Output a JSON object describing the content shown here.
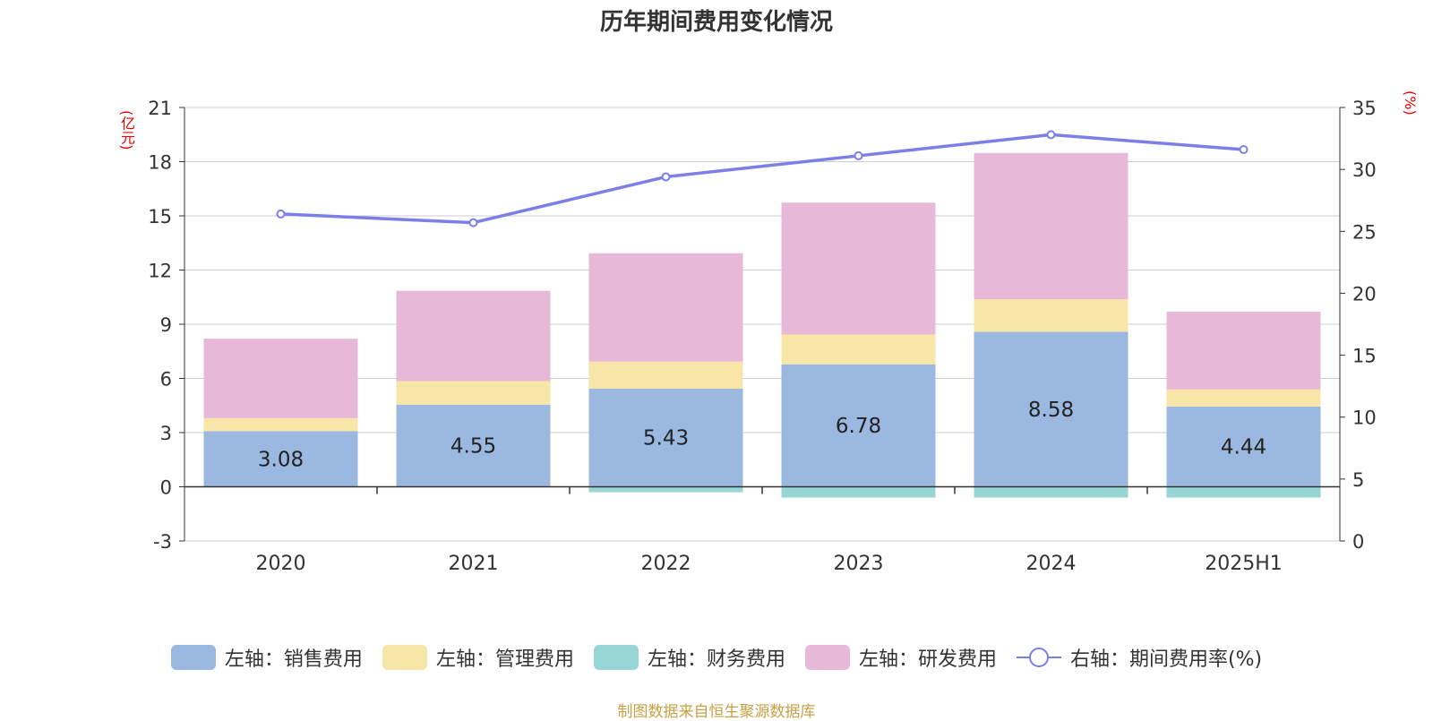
{
  "title": "历年期间费用变化情况",
  "left_unit": "(亿元)",
  "right_unit": "(%)",
  "footer": "制图数据来自恒生聚源数据库",
  "legend": {
    "sales": "左轴：销售费用",
    "admin": "左轴：管理费用",
    "finance": "左轴：财务费用",
    "rd": "左轴：研发费用",
    "rate": "右轴：期间费用率(%)"
  },
  "colors": {
    "sales": "#9bb8e1",
    "admin": "#f8e6a8",
    "finance": "#98d6d6",
    "rd": "#e8b8d8",
    "rate": "#7b7fe8"
  },
  "chart_data": {
    "type": "bar",
    "stacked": true,
    "categories": [
      "2020",
      "2021",
      "2022",
      "2023",
      "2024",
      "2025H1"
    ],
    "series": [
      {
        "name": "左轴：销售费用",
        "key": "sales",
        "axis": "left",
        "values": [
          3.08,
          4.55,
          5.43,
          6.78,
          8.58,
          4.44
        ],
        "labels": [
          "3.08",
          "4.55",
          "5.43",
          "6.78",
          "8.58",
          "4.44"
        ]
      },
      {
        "name": "左轴：管理费用",
        "key": "admin",
        "axis": "left",
        "values": [
          0.72,
          1.3,
          1.5,
          1.65,
          1.8,
          0.95
        ]
      },
      {
        "name": "左轴：财务费用",
        "key": "finance",
        "axis": "left",
        "values": [
          0.0,
          0.0,
          -0.3,
          -0.6,
          -0.6,
          -0.6
        ]
      },
      {
        "name": "左轴：研发费用",
        "key": "rd",
        "axis": "left",
        "values": [
          4.4,
          5.0,
          6.0,
          7.3,
          8.1,
          4.3
        ]
      },
      {
        "name": "右轴：期间费用率(%)",
        "key": "rate",
        "type": "line",
        "axis": "right",
        "values": [
          26.4,
          25.7,
          29.4,
          31.1,
          32.8,
          31.6
        ]
      }
    ],
    "left_axis": {
      "min": -3,
      "max": 21,
      "ticks": [
        -3,
        0,
        3,
        6,
        9,
        12,
        15,
        18,
        21
      ]
    },
    "right_axis": {
      "min": 0,
      "max": 35,
      "ticks": [
        0,
        5,
        10,
        15,
        20,
        25,
        30,
        35
      ]
    },
    "grid": true,
    "legend_position": "bottom"
  }
}
